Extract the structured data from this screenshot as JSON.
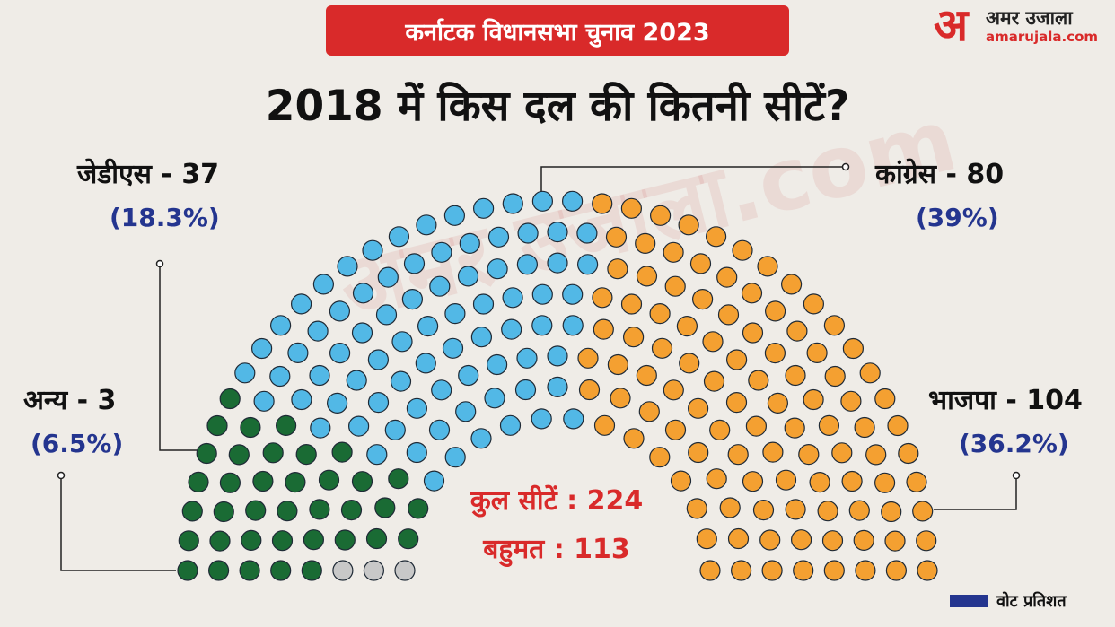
{
  "header": {
    "banner": "कर्नाटक विधानसभा चुनाव 2023",
    "title": "2018 में किस दल की कितनी सीटें?"
  },
  "logo": {
    "glyph": "अ",
    "name": "अमर उजाला",
    "site": "amarujala.com",
    "watermark": "अमर उजाला.com"
  },
  "summary": {
    "total": "कुल सीटें : 224",
    "majority": "बहुमत : 113"
  },
  "legend": {
    "label": "वोट प्रतिशत",
    "color": "#24358f"
  },
  "chart_data": {
    "type": "parliament",
    "total_seats": 224,
    "majority": 113,
    "series": [
      {
        "name": "अन्य",
        "label": "अन्य - 3",
        "seats": 3,
        "vote_share": "(6.5%)",
        "color": "#c8c8c8"
      },
      {
        "name": "जेडीएस",
        "label": "जेडीएस - 37",
        "seats": 37,
        "vote_share": "(18.3%)",
        "color": "#1a6b34"
      },
      {
        "name": "कांग्रेस",
        "label": "कांग्रेस - 80",
        "seats": 80,
        "vote_share": "(39%)",
        "color": "#52b8e6"
      },
      {
        "name": "भाजपा",
        "label": "भाजपा - 104",
        "seats": 104,
        "vote_share": "(36.2%)",
        "color": "#f4a031"
      }
    ]
  }
}
